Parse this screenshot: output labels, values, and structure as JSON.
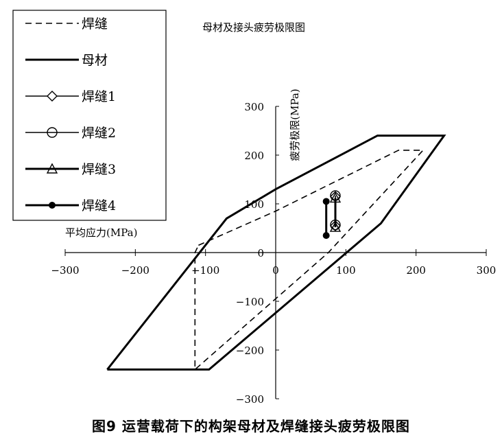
{
  "caption": "图9 运营载荷下的构架母材及焊缝接头疲劳极限图",
  "chart_data": {
    "type": "line",
    "title": "母材及接头疲劳极限图",
    "xlabel": "平均应力(MPa)",
    "ylabel": "疲劳极限(MPa)",
    "xlim": [
      -300,
      300
    ],
    "ylim": [
      -300,
      300
    ],
    "xticks": [
      -300,
      -200,
      -100,
      0,
      100,
      200,
      300
    ],
    "yticks": [
      -300,
      -200,
      -100,
      0,
      100,
      200,
      300
    ],
    "grid": false,
    "legend_position": "top-left",
    "series": [
      {
        "name": "焊缝",
        "style": "dashed",
        "points": [
          [
            -110,
            15
          ],
          [
            0,
            85
          ],
          [
            175,
            210
          ],
          [
            210,
            210
          ],
          [
            75,
            0
          ],
          [
            -115,
            -240
          ],
          [
            -115,
            0
          ],
          [
            -110,
            15
          ]
        ]
      },
      {
        "name": "母材",
        "style": "thick",
        "points": [
          [
            -240,
            -240
          ],
          [
            -70,
            70
          ],
          [
            0,
            130
          ],
          [
            145,
            240
          ],
          [
            240,
            240
          ],
          [
            150,
            60
          ],
          [
            -95,
            -240
          ],
          [
            -240,
            -240
          ]
        ]
      },
      {
        "name": "焊缝1",
        "style": "thin",
        "marker": "diamond",
        "points": [
          [
            85,
            115
          ],
          [
            85,
            55
          ]
        ]
      },
      {
        "name": "焊缝2",
        "style": "thin",
        "marker": "circle",
        "points": [
          [
            85,
            117
          ],
          [
            85,
            57
          ]
        ]
      },
      {
        "name": "焊缝3",
        "style": "thick",
        "marker": "triangle",
        "points": [
          [
            85,
            112
          ],
          [
            85,
            52
          ]
        ]
      },
      {
        "name": "焊缝4",
        "style": "thick",
        "marker": "dot",
        "points": [
          [
            72,
            105
          ],
          [
            72,
            35
          ]
        ]
      }
    ]
  }
}
